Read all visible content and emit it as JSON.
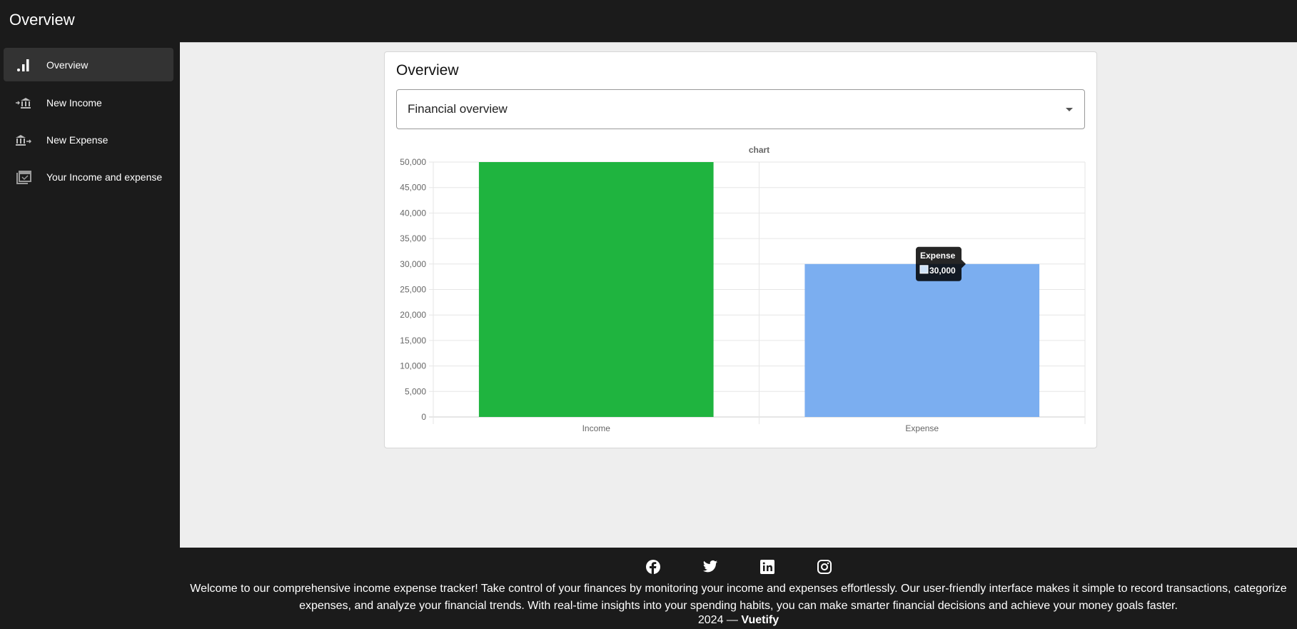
{
  "header": {
    "title": "Overview"
  },
  "sidebar": {
    "items": [
      {
        "label": "Overview",
        "icon": "chart-bar-icon",
        "active": true
      },
      {
        "label": "New Income",
        "icon": "bank-transfer-in-icon"
      },
      {
        "label": "New Expense",
        "icon": "bank-transfer-out-icon"
      },
      {
        "label": "Your Income and expense",
        "icon": "calendar-check-multiple-icon"
      }
    ]
  },
  "card": {
    "title": "Overview",
    "select": {
      "value": "Financial overview"
    }
  },
  "chart_data": {
    "type": "bar",
    "title": "chart",
    "categories": [
      "Income",
      "Expense"
    ],
    "values": [
      50000,
      30000
    ],
    "colors": [
      "#1fb43f",
      "#7baef0"
    ],
    "ylim": [
      0,
      50000
    ],
    "yticks": [
      "0",
      "5,000",
      "10,000",
      "15,000",
      "20,000",
      "25,000",
      "30,000",
      "35,000",
      "40,000",
      "45,000",
      "50,000"
    ],
    "grid": true,
    "tooltip": {
      "title": "Expense",
      "value": "30,000"
    }
  },
  "footer": {
    "icons": [
      "facebook-icon",
      "twitter-icon",
      "linkedin-icon",
      "instagram-icon"
    ],
    "text": "Welcome to our comprehensive income expense tracker! Take control of your finances by monitoring your income and expenses effortlessly. Our user-friendly interface makes it simple to record transactions, categorize expenses, and analyze your financial trends. With real-time insights into your spending habits, you can make smarter financial decisions and achieve your money goals faster.",
    "year": "2024 — ",
    "brand": "Vuetify"
  }
}
